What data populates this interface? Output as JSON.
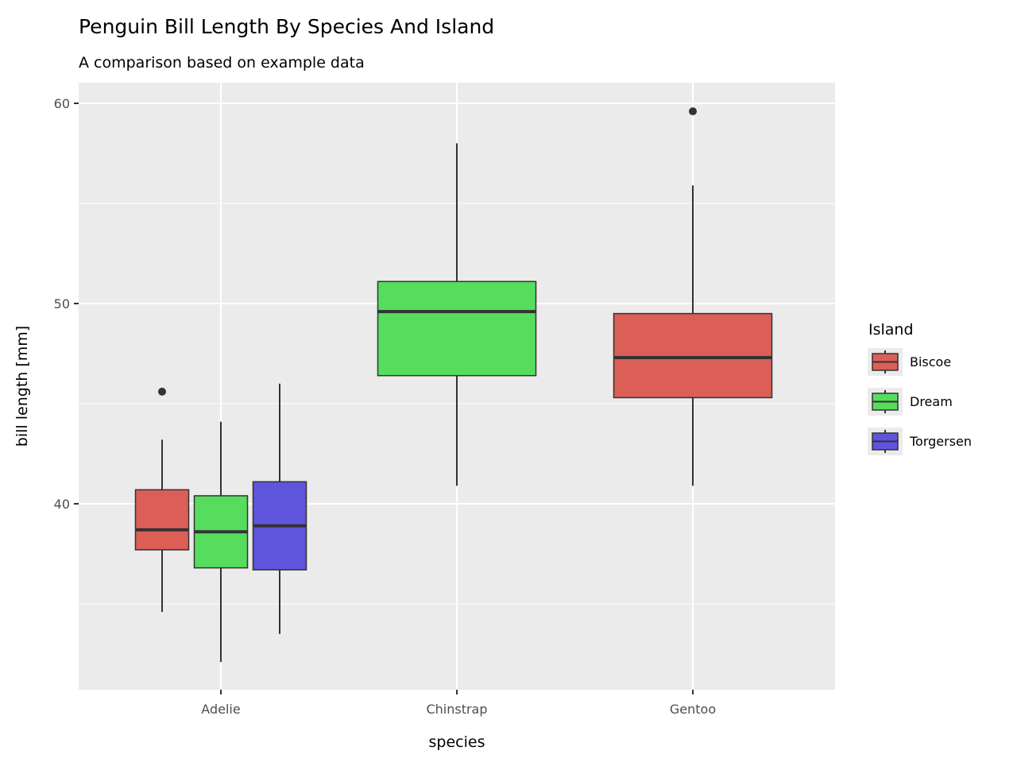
{
  "chart_data": {
    "type": "boxplot",
    "title": "Penguin Bill Length By Species And Island",
    "subtitle": "A comparison based on example data",
    "xlabel": "species",
    "ylabel": "bill length [mm]",
    "ylim": [
      30.7,
      61.0
    ],
    "yticks": [
      40,
      50,
      60
    ],
    "yticks_minor": [
      35,
      45,
      55
    ],
    "grid": true,
    "categories": [
      "Adelie",
      "Chinstrap",
      "Gentoo"
    ],
    "legend": {
      "title": "Island",
      "placement": "right",
      "entries": [
        {
          "name": "Biscoe",
          "color": "#DB5F57"
        },
        {
          "name": "Dream",
          "color": "#56DD5E"
        },
        {
          "name": "Torgersen",
          "color": "#5F55DD"
        }
      ]
    },
    "boxes": [
      {
        "species": "Adelie",
        "island": "Biscoe",
        "dodge": 0,
        "ngroups": 3,
        "lower_whisker": 34.6,
        "q1": 37.7,
        "median": 38.7,
        "q3": 40.7,
        "upper_whisker": 43.2,
        "outliers": [
          45.6
        ]
      },
      {
        "species": "Adelie",
        "island": "Dream",
        "dodge": 1,
        "ngroups": 3,
        "lower_whisker": 32.1,
        "q1": 36.8,
        "median": 38.6,
        "q3": 40.4,
        "upper_whisker": 44.1,
        "outliers": []
      },
      {
        "species": "Adelie",
        "island": "Torgersen",
        "dodge": 2,
        "ngroups": 3,
        "lower_whisker": 33.5,
        "q1": 36.7,
        "median": 38.9,
        "q3": 41.1,
        "upper_whisker": 46.0,
        "outliers": []
      },
      {
        "species": "Chinstrap",
        "island": "Dream",
        "dodge": 0,
        "ngroups": 1,
        "lower_whisker": 40.9,
        "q1": 46.4,
        "median": 49.6,
        "q3": 51.1,
        "upper_whisker": 58.0,
        "outliers": []
      },
      {
        "species": "Gentoo",
        "island": "Biscoe",
        "dodge": 0,
        "ngroups": 1,
        "lower_whisker": 40.9,
        "q1": 45.3,
        "median": 47.3,
        "q3": 49.5,
        "upper_whisker": 55.9,
        "outliers": [
          59.6
        ]
      }
    ]
  }
}
